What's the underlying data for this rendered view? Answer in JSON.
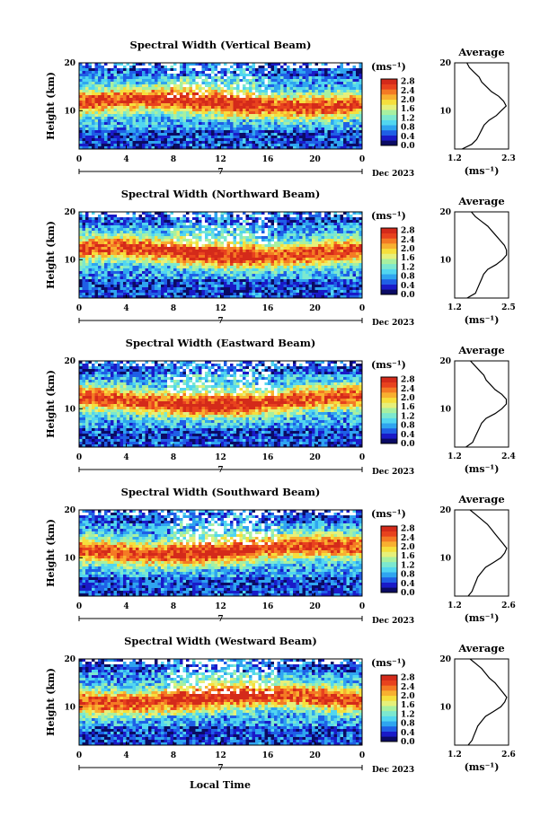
{
  "figure": {
    "xlabel": "Local Time",
    "colors": {
      "colormap": [
        "#0b0b64",
        "#1a1ac8",
        "#1f5fe6",
        "#2fa5f0",
        "#52d6f0",
        "#7ce8cf",
        "#a8f0a0",
        "#e6f07a",
        "#f6df3c",
        "#f8b030",
        "#f47a24",
        "#e8421e",
        "#d42a1a"
      ]
    }
  },
  "chart_data": [
    {
      "type": "heatmap",
      "title": "Spectral Width (Vertical Beam)",
      "ylabel": "Height (km)",
      "xlim": [
        0,
        24
      ],
      "ylim": [
        2,
        20
      ],
      "x_ticks": [
        "0",
        "4",
        "8",
        "12",
        "16",
        "20",
        "0"
      ],
      "y_ticks": [
        "20",
        "10"
      ],
      "date_marker": "7",
      "date_label": "Dec 2023",
      "colorbar": {
        "label": "(ms⁻¹)",
        "ticks": [
          "2.8",
          "2.4",
          "2.0",
          "1.6",
          "1.2",
          "0.8",
          "0.4",
          "0.0"
        ],
        "range": [
          0,
          2.9
        ]
      },
      "profile": {
        "title": "Average",
        "xlabel": "(ms⁻¹)",
        "x_ticks": [
          "1.2",
          "2.3"
        ],
        "xlim": [
          1.2,
          2.3
        ],
        "heights": [
          2,
          3,
          4,
          5,
          6,
          7,
          8,
          9,
          10,
          11,
          12,
          13,
          14,
          15,
          16,
          17,
          18,
          19,
          20
        ],
        "values": [
          1.35,
          1.55,
          1.65,
          1.7,
          1.75,
          1.8,
          1.9,
          2.05,
          2.15,
          2.25,
          2.2,
          2.1,
          1.95,
          1.85,
          1.75,
          1.7,
          1.6,
          1.5,
          1.45
        ]
      }
    },
    {
      "type": "heatmap",
      "title": "Spectral Width (Northward Beam)",
      "ylabel": "Height (km)",
      "xlim": [
        0,
        24
      ],
      "ylim": [
        2,
        20
      ],
      "x_ticks": [
        "0",
        "4",
        "8",
        "12",
        "16",
        "20",
        "0"
      ],
      "y_ticks": [
        "20",
        "10"
      ],
      "date_marker": "7",
      "date_label": "Dec 2023",
      "colorbar": {
        "label": "(ms⁻¹)",
        "ticks": [
          "2.8",
          "2.4",
          "2.0",
          "1.6",
          "1.2",
          "0.8",
          "0.4",
          "0.0"
        ],
        "range": [
          0,
          2.9
        ]
      },
      "profile": {
        "title": "Average",
        "xlabel": "(ms⁻¹)",
        "x_ticks": [
          "1.2",
          "2.5"
        ],
        "xlim": [
          1.2,
          2.5
        ],
        "heights": [
          2,
          3,
          4,
          5,
          6,
          7,
          8,
          9,
          10,
          11,
          12,
          13,
          14,
          15,
          16,
          17,
          18,
          19,
          20
        ],
        "values": [
          1.5,
          1.7,
          1.75,
          1.8,
          1.85,
          1.9,
          2.0,
          2.2,
          2.35,
          2.45,
          2.45,
          2.4,
          2.3,
          2.2,
          2.1,
          2.0,
          1.85,
          1.7,
          1.6
        ]
      }
    },
    {
      "type": "heatmap",
      "title": "Spectral Width (Eastward Beam)",
      "ylabel": "Height (km)",
      "xlim": [
        0,
        24
      ],
      "ylim": [
        2,
        20
      ],
      "x_ticks": [
        "0",
        "4",
        "8",
        "12",
        "16",
        "20",
        "0"
      ],
      "y_ticks": [
        "20",
        "10"
      ],
      "date_marker": "7",
      "date_label": "Dec 2023",
      "colorbar": {
        "label": "(ms⁻¹)",
        "ticks": [
          "2.8",
          "2.4",
          "2.0",
          "1.6",
          "1.2",
          "0.8",
          "0.4",
          "0.0"
        ],
        "range": [
          0,
          2.9
        ]
      },
      "profile": {
        "title": "Average",
        "xlabel": "(ms⁻¹)",
        "x_ticks": [
          "1.2",
          "2.4"
        ],
        "xlim": [
          1.2,
          2.4
        ],
        "heights": [
          2,
          3,
          4,
          5,
          6,
          7,
          8,
          9,
          10,
          11,
          12,
          13,
          14,
          15,
          16,
          17,
          18,
          19,
          20
        ],
        "values": [
          1.45,
          1.6,
          1.65,
          1.7,
          1.75,
          1.8,
          1.9,
          2.1,
          2.25,
          2.35,
          2.35,
          2.25,
          2.1,
          2.0,
          1.9,
          1.85,
          1.75,
          1.65,
          1.55
        ]
      }
    },
    {
      "type": "heatmap",
      "title": "Spectral Width (Southward Beam)",
      "ylabel": "Height (km)",
      "xlim": [
        0,
        24
      ],
      "ylim": [
        2,
        20
      ],
      "x_ticks": [
        "0",
        "4",
        "8",
        "12",
        "16",
        "20",
        "0"
      ],
      "y_ticks": [
        "20",
        "10"
      ],
      "date_marker": "7",
      "date_label": "Dec 2023",
      "colorbar": {
        "label": "(ms⁻¹)",
        "ticks": [
          "2.8",
          "2.4",
          "2.0",
          "1.6",
          "1.2",
          "0.8",
          "0.4",
          "0.0"
        ],
        "range": [
          0,
          2.9
        ]
      },
      "profile": {
        "title": "Average",
        "xlabel": "(ms⁻¹)",
        "x_ticks": [
          "1.2",
          "2.6"
        ],
        "xlim": [
          1.2,
          2.6
        ],
        "heights": [
          2,
          3,
          4,
          5,
          6,
          7,
          8,
          9,
          10,
          11,
          12,
          13,
          14,
          15,
          16,
          17,
          18,
          19,
          20
        ],
        "values": [
          1.55,
          1.65,
          1.7,
          1.75,
          1.8,
          1.9,
          2.0,
          2.2,
          2.4,
          2.5,
          2.55,
          2.45,
          2.35,
          2.25,
          2.15,
          2.05,
          1.9,
          1.75,
          1.6
        ]
      }
    },
    {
      "type": "heatmap",
      "title": "Spectral Width (Westward Beam)",
      "ylabel": "Height (km)",
      "xlim": [
        0,
        24
      ],
      "ylim": [
        2,
        20
      ],
      "x_ticks": [
        "0",
        "4",
        "8",
        "12",
        "16",
        "20",
        "0"
      ],
      "y_ticks": [
        "20",
        "10"
      ],
      "date_marker": "7",
      "date_label": "Dec 2023",
      "colorbar": {
        "label": "(ms⁻¹)",
        "ticks": [
          "2.8",
          "2.4",
          "2.0",
          "1.6",
          "1.2",
          "0.8",
          "0.4",
          "0.0"
        ],
        "range": [
          0,
          2.9
        ]
      },
      "profile": {
        "title": "Average",
        "xlabel": "(ms⁻¹)",
        "x_ticks": [
          "1.2",
          "2.6"
        ],
        "xlim": [
          1.2,
          2.6
        ],
        "heights": [
          2,
          3,
          4,
          5,
          6,
          7,
          8,
          9,
          10,
          11,
          12,
          13,
          14,
          15,
          16,
          17,
          18,
          19,
          20
        ],
        "values": [
          1.55,
          1.65,
          1.7,
          1.75,
          1.8,
          1.9,
          2.0,
          2.2,
          2.4,
          2.5,
          2.55,
          2.45,
          2.35,
          2.25,
          2.1,
          2.0,
          1.9,
          1.75,
          1.6
        ]
      }
    }
  ]
}
